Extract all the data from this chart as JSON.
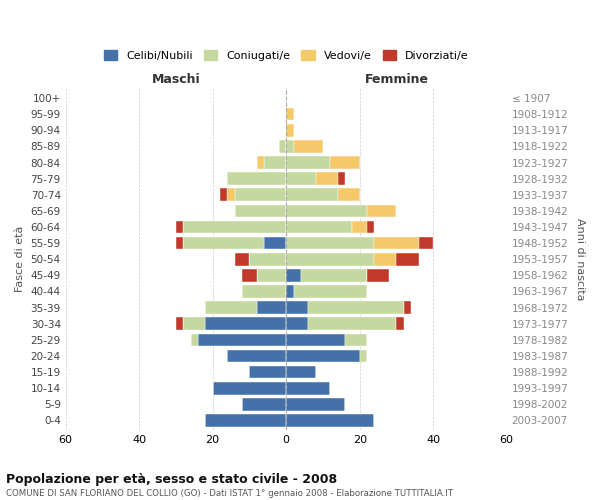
{
  "age_groups": [
    "0-4",
    "5-9",
    "10-14",
    "15-19",
    "20-24",
    "25-29",
    "30-34",
    "35-39",
    "40-44",
    "45-49",
    "50-54",
    "55-59",
    "60-64",
    "65-69",
    "70-74",
    "75-79",
    "80-84",
    "85-89",
    "90-94",
    "95-99",
    "100+"
  ],
  "birth_years": [
    "2003-2007",
    "1998-2002",
    "1993-1997",
    "1988-1992",
    "1983-1987",
    "1978-1982",
    "1973-1977",
    "1968-1972",
    "1963-1967",
    "1958-1962",
    "1953-1957",
    "1948-1952",
    "1943-1947",
    "1938-1942",
    "1933-1937",
    "1928-1932",
    "1923-1927",
    "1918-1922",
    "1913-1917",
    "1908-1912",
    "≤ 1907"
  ],
  "male": {
    "celibi": [
      22,
      12,
      20,
      10,
      16,
      24,
      22,
      8,
      0,
      0,
      0,
      6,
      0,
      0,
      0,
      0,
      0,
      0,
      0,
      0,
      0
    ],
    "coniugati": [
      0,
      0,
      0,
      0,
      0,
      2,
      6,
      14,
      12,
      8,
      10,
      22,
      28,
      14,
      14,
      16,
      6,
      2,
      0,
      0,
      0
    ],
    "vedovi": [
      0,
      0,
      0,
      0,
      0,
      0,
      0,
      0,
      0,
      0,
      0,
      0,
      0,
      0,
      2,
      0,
      2,
      0,
      0,
      0,
      0
    ],
    "divorziati": [
      0,
      0,
      0,
      0,
      0,
      0,
      2,
      0,
      0,
      4,
      4,
      2,
      2,
      0,
      2,
      0,
      0,
      0,
      0,
      0,
      0
    ]
  },
  "female": {
    "nubili": [
      24,
      16,
      12,
      8,
      20,
      16,
      6,
      6,
      2,
      4,
      0,
      0,
      0,
      0,
      0,
      0,
      0,
      0,
      0,
      0,
      0
    ],
    "coniugate": [
      0,
      0,
      0,
      0,
      2,
      6,
      24,
      26,
      20,
      18,
      24,
      24,
      18,
      22,
      14,
      8,
      12,
      2,
      0,
      0,
      0
    ],
    "vedove": [
      0,
      0,
      0,
      0,
      0,
      0,
      0,
      0,
      0,
      0,
      6,
      12,
      4,
      8,
      6,
      6,
      8,
      8,
      2,
      2,
      0
    ],
    "divorziate": [
      0,
      0,
      0,
      0,
      0,
      0,
      2,
      2,
      0,
      6,
      6,
      4,
      2,
      0,
      0,
      2,
      0,
      0,
      0,
      0,
      0
    ]
  },
  "colors": {
    "celibi": "#4472a8",
    "coniugati": "#c5d8a0",
    "vedovi": "#f5c96a",
    "divorziati": "#c0392b"
  },
  "xlim": 60,
  "title": "Popolazione per età, sesso e stato civile - 2008",
  "subtitle": "COMUNE DI SAN FLORIANO DEL COLLIO (GO) - Dati ISTAT 1° gennaio 2008 - Elaborazione TUTTITALIA.IT",
  "ylabel_left": "Fasce di età",
  "ylabel_right": "Anni di nascita",
  "legend": [
    "Celibi/Nubili",
    "Coniugati/e",
    "Vedovi/e",
    "Divorziati/e"
  ],
  "maschi_label": "Maschi",
  "femmine_label": "Femmine",
  "xticks": [
    60,
    40,
    20,
    0,
    20,
    40,
    60
  ]
}
